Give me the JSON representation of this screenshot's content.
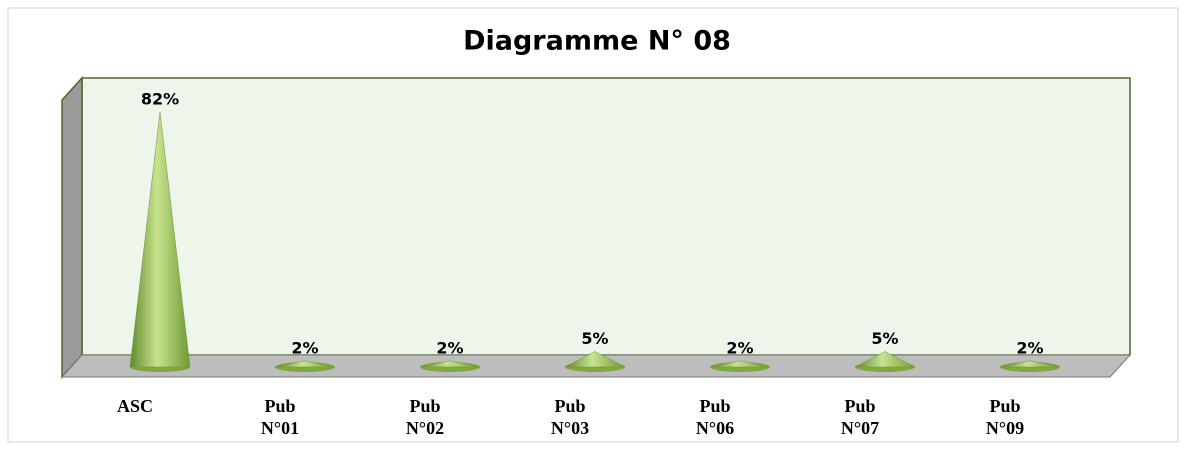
{
  "chart_data": {
    "type": "cone",
    "title": "Diagramme N° 08",
    "categories": [
      "ASC",
      "Pub N°01",
      "Pub N°02",
      "Pub N°03",
      "Pub N°06",
      "Pub N°07",
      "Pub N°09"
    ],
    "values": [
      82,
      2,
      2,
      5,
      2,
      5,
      2
    ],
    "value_labels": [
      "82%",
      "2%",
      "2%",
      "5%",
      "2%",
      "5%",
      "2%"
    ],
    "color": "#9bc454"
  }
}
